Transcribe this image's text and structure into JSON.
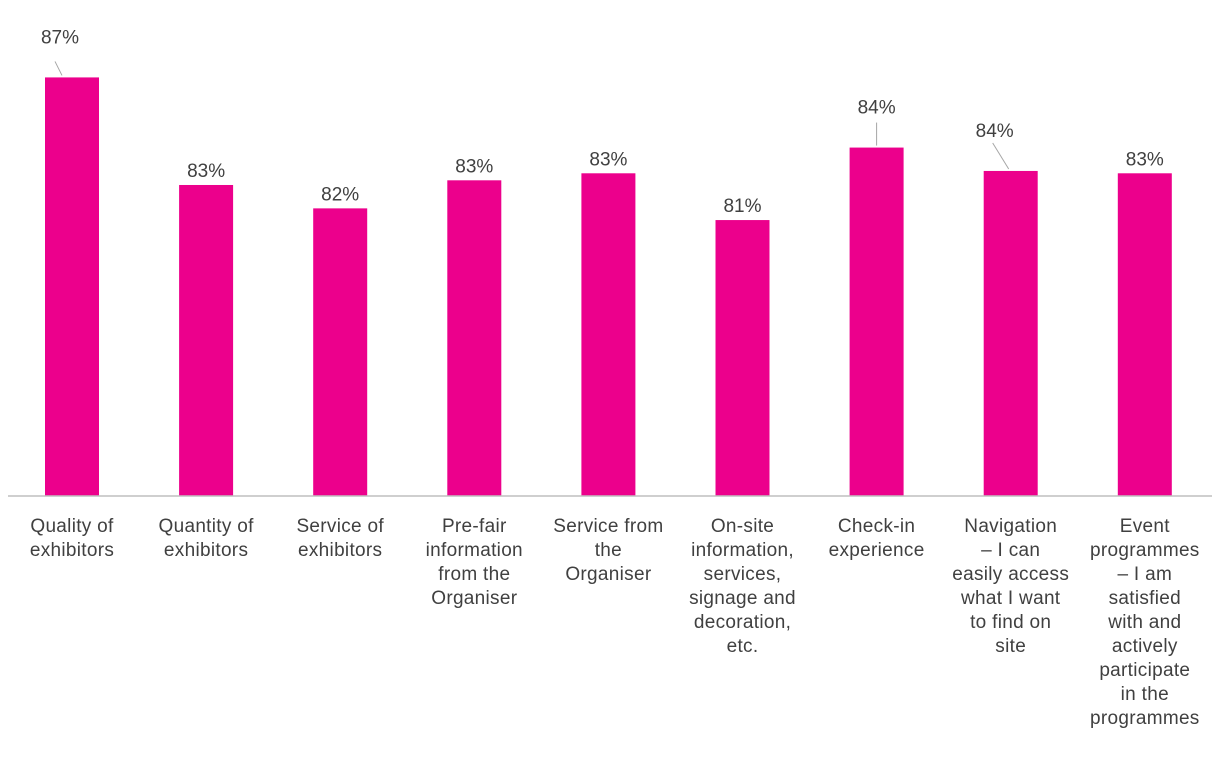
{
  "chart_data": {
    "type": "bar",
    "categories": [
      "Quality of exhibitors",
      "Quantity of exhibitors",
      "Service of exhibitors",
      "Pre-fair information from the Organiser",
      "Service from the Organiser",
      "On-site information, services, signage and decoration, etc.",
      "Check-in experience",
      "Navigation – I can easily access what I want to find on site",
      "Event programmes – I am satisfied with and actively participate in the programmes"
    ],
    "category_lines": [
      [
        "Quality of",
        "exhibitors"
      ],
      [
        "Quantity of",
        "exhibitors"
      ],
      [
        "Service of",
        "exhibitors"
      ],
      [
        "Pre-fair",
        "information",
        "from the",
        "Organiser"
      ],
      [
        "Service from",
        "the",
        "Organiser"
      ],
      [
        "On-site",
        "information,",
        "services,",
        "signage and",
        "decoration,",
        "etc."
      ],
      [
        "Check-in",
        "experience"
      ],
      [
        "Navigation",
        "– I can",
        "easily access",
        "what I want",
        "to find on",
        "site"
      ],
      [
        "Event",
        "programmes",
        "– I am",
        "satisfied",
        "with and",
        "actively",
        "participate",
        "in the",
        "programmes"
      ]
    ],
    "values": [
      87,
      83,
      82,
      83,
      83,
      81,
      84,
      84,
      83
    ],
    "display_values": [
      85.9,
      81.3,
      80.3,
      81.5,
      81.8,
      79.8,
      82.9,
      81.9,
      81.8
    ],
    "data_labels": [
      "87%",
      "83%",
      "82%",
      "83%",
      "83%",
      "81%",
      "84%",
      "84%",
      "83%"
    ],
    "ylim": [
      68,
      87.5
    ],
    "grid": false,
    "legend": "none",
    "bar_color": "#EC008C",
    "axis_color": "#BFBFBF",
    "leader_color": "#A6A6A6",
    "label_color": "#404040"
  }
}
